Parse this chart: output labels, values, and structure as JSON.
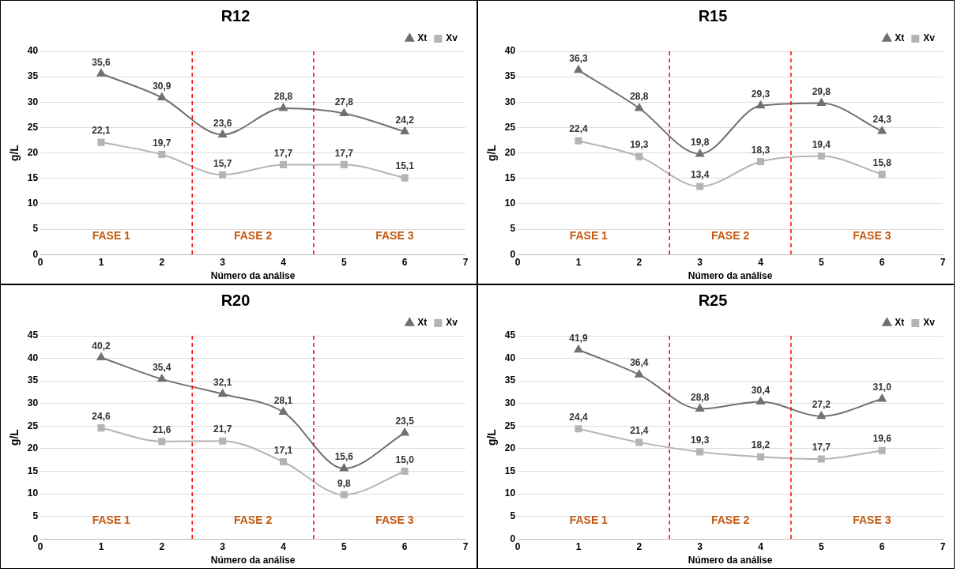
{
  "chart_data": [
    {
      "type": "line",
      "title": "R12",
      "xlabel": "Número da análise",
      "ylabel": "g/L",
      "x": [
        1,
        2,
        3,
        4,
        5,
        6
      ],
      "xlim": [
        0,
        7
      ],
      "xticks": [
        0,
        1,
        2,
        3,
        4,
        5,
        6,
        7
      ],
      "ylim": [
        0,
        40
      ],
      "yticks": [
        0,
        5,
        10,
        15,
        20,
        25,
        30,
        35,
        40
      ],
      "grid": "y",
      "legend": "top right",
      "line_style": "solid",
      "series": [
        {
          "name": "Xt",
          "color": "#707070",
          "marker": "triangle",
          "values": [
            35.6,
            30.9,
            23.6,
            28.8,
            27.8,
            24.2
          ],
          "value_labels": [
            "35,6",
            "30,9",
            "23,6",
            "28,8",
            "27,8",
            "24,2"
          ]
        },
        {
          "name": "Xv",
          "color": "#b4b4b4",
          "marker": "square",
          "values": [
            22.1,
            19.7,
            15.7,
            17.7,
            17.7,
            15.1
          ],
          "value_labels": [
            "22,1",
            "19,7",
            "15,7",
            "17,7",
            "17,7",
            "15,1"
          ]
        }
      ],
      "ref_lines": [
        {
          "axis": "x",
          "value": 2.5,
          "color": "#ff0000",
          "line_style": "dashed"
        },
        {
          "axis": "x",
          "value": 4.5,
          "color": "#ff0000",
          "line_style": "dashed"
        }
      ],
      "annotations": [
        "FASE 1",
        "FASE 2",
        "FASE 3"
      ]
    },
    {
      "type": "line",
      "title": "R15",
      "xlabel": "Número da análise",
      "ylabel": "g/L",
      "x": [
        1,
        2,
        3,
        4,
        5,
        6
      ],
      "xlim": [
        0,
        7
      ],
      "xticks": [
        0,
        1,
        2,
        3,
        4,
        5,
        6,
        7
      ],
      "ylim": [
        0,
        40
      ],
      "yticks": [
        0,
        5,
        10,
        15,
        20,
        25,
        30,
        35,
        40
      ],
      "grid": "y",
      "legend": "top right",
      "line_style": "solid",
      "series": [
        {
          "name": "Xt",
          "color": "#707070",
          "marker": "triangle",
          "values": [
            36.3,
            28.8,
            19.8,
            29.3,
            29.8,
            24.3
          ],
          "value_labels": [
            "36,3",
            "28,8",
            "19,8",
            "29,3",
            "29,8",
            "24,3"
          ]
        },
        {
          "name": "Xv",
          "color": "#b4b4b4",
          "marker": "square",
          "values": [
            22.4,
            19.3,
            13.4,
            18.3,
            19.4,
            15.8
          ],
          "value_labels": [
            "22,4",
            "19,3",
            "13,4",
            "18,3",
            "19,4",
            "15,8"
          ]
        }
      ],
      "ref_lines": [
        {
          "axis": "x",
          "value": 2.5,
          "color": "#ff0000",
          "line_style": "dashed"
        },
        {
          "axis": "x",
          "value": 4.5,
          "color": "#ff0000",
          "line_style": "dashed"
        }
      ],
      "annotations": [
        "FASE 1",
        "FASE 2",
        "FASE 3"
      ]
    },
    {
      "type": "line",
      "title": "R20",
      "xlabel": "Número da análise",
      "ylabel": "g/L",
      "x": [
        1,
        2,
        3,
        4,
        5,
        6
      ],
      "xlim": [
        0,
        7
      ],
      "xticks": [
        0,
        1,
        2,
        3,
        4,
        5,
        6,
        7
      ],
      "ylim": [
        0,
        45
      ],
      "yticks": [
        0,
        5,
        10,
        15,
        20,
        25,
        30,
        35,
        40,
        45
      ],
      "grid": "y",
      "legend": "top right",
      "line_style": "solid",
      "series": [
        {
          "name": "Xt",
          "color": "#707070",
          "marker": "triangle",
          "values": [
            40.2,
            35.4,
            32.1,
            28.1,
            15.6,
            23.5
          ],
          "value_labels": [
            "40,2",
            "35,4",
            "32,1",
            "28,1",
            "15,6",
            "23,5"
          ]
        },
        {
          "name": "Xv",
          "color": "#b4b4b4",
          "marker": "square",
          "values": [
            24.6,
            21.6,
            21.7,
            17.1,
            9.8,
            15.0
          ],
          "value_labels": [
            "24,6",
            "21,6",
            "21,7",
            "17,1",
            "9,8",
            "15,0"
          ]
        }
      ],
      "ref_lines": [
        {
          "axis": "x",
          "value": 2.5,
          "color": "#ff0000",
          "line_style": "dashed"
        },
        {
          "axis": "x",
          "value": 4.5,
          "color": "#ff0000",
          "line_style": "dashed"
        }
      ],
      "annotations": [
        "FASE 1",
        "FASE 2",
        "FASE 3"
      ]
    },
    {
      "type": "line",
      "title": "R25",
      "xlabel": "Número da análise",
      "ylabel": "g/L",
      "x": [
        1,
        2,
        3,
        4,
        5,
        6
      ],
      "xlim": [
        0,
        7
      ],
      "xticks": [
        0,
        1,
        2,
        3,
        4,
        5,
        6,
        7
      ],
      "ylim": [
        0,
        45
      ],
      "yticks": [
        0,
        5,
        10,
        15,
        20,
        25,
        30,
        35,
        40,
        45
      ],
      "grid": "y",
      "legend": "top right",
      "line_style": "solid",
      "series": [
        {
          "name": "Xt",
          "color": "#707070",
          "marker": "triangle",
          "values": [
            41.9,
            36.4,
            28.8,
            30.4,
            27.2,
            31.0
          ],
          "value_labels": [
            "41,9",
            "36,4",
            "28,8",
            "30,4",
            "27,2",
            "31,0"
          ]
        },
        {
          "name": "Xv",
          "color": "#b4b4b4",
          "marker": "square",
          "values": [
            24.4,
            21.4,
            19.3,
            18.2,
            17.7,
            19.6
          ],
          "value_labels": [
            "24,4",
            "21,4",
            "19,3",
            "18,2",
            "17,7",
            "19,6"
          ]
        }
      ],
      "ref_lines": [
        {
          "axis": "x",
          "value": 2.5,
          "color": "#ff0000",
          "line_style": "dashed"
        },
        {
          "axis": "x",
          "value": 4.5,
          "color": "#ff0000",
          "line_style": "dashed"
        }
      ],
      "annotations": [
        "FASE 1",
        "FASE 2",
        "FASE 3"
      ]
    }
  ]
}
